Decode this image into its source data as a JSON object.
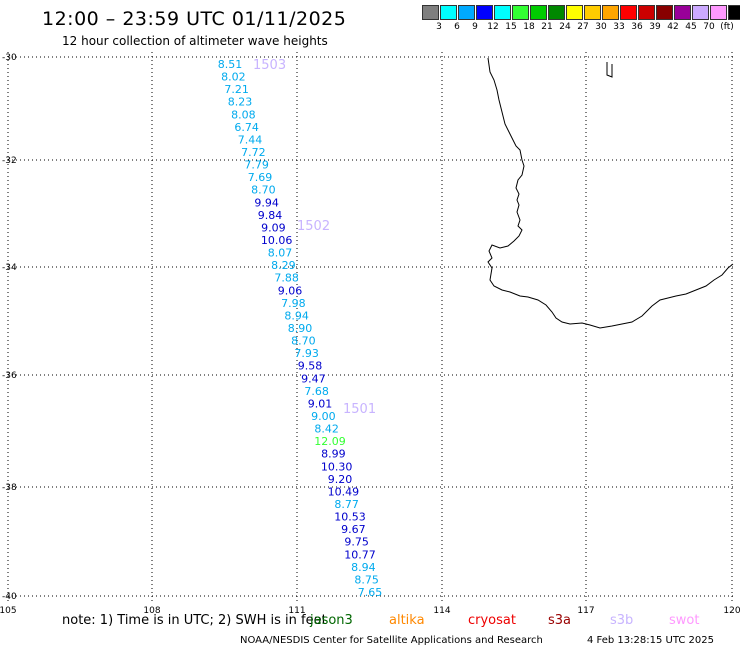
{
  "title": "12:00 – 23:59 UTC 01/11/2025",
  "subtitle": "12 hour collection of altimeter wave heights",
  "legend": {
    "colors": [
      "#7f7f7f",
      "#00ffff",
      "#00aaff",
      "#0000ff",
      "#00ffff",
      "#33ff33",
      "#00cc00",
      "#008800",
      "#ffff00",
      "#ffcc00",
      "#ffa500",
      "#ff0000",
      "#cc0000",
      "#880000",
      "#990099",
      "#ccaaff",
      "#ff99ff",
      "#000000"
    ],
    "ticks": [
      "3",
      "6",
      "9",
      "12",
      "15",
      "18",
      "21",
      "24",
      "27",
      "30",
      "33",
      "36",
      "39",
      "42",
      "45",
      "70",
      "(ft)"
    ]
  },
  "lat_labels": [
    "-30",
    "-32",
    "-34",
    "-36",
    "-38",
    "-40"
  ],
  "lon_labels": [
    "105",
    "108",
    "111",
    "114",
    "117",
    "120"
  ],
  "passes": [
    {
      "label": "1503",
      "color": "#c8b4ff"
    },
    {
      "label": "1502",
      "color": "#c8b4ff"
    },
    {
      "label": "1501",
      "color": "#c8b4ff"
    }
  ],
  "points": [
    {
      "v": "8.51",
      "c": "#00aaee"
    },
    {
      "v": "8.02",
      "c": "#00aaee"
    },
    {
      "v": "7.21",
      "c": "#00aaee"
    },
    {
      "v": "8.23",
      "c": "#00aaee"
    },
    {
      "v": "8.08",
      "c": "#00aaee"
    },
    {
      "v": "6.74",
      "c": "#00aaee"
    },
    {
      "v": "7.44",
      "c": "#00aaee"
    },
    {
      "v": "7.72",
      "c": "#00aaee"
    },
    {
      "v": "7.79",
      "c": "#00aaee"
    },
    {
      "v": "7.69",
      "c": "#00aaee"
    },
    {
      "v": "8.70",
      "c": "#00aaee"
    },
    {
      "v": "9.94",
      "c": "#0000cc"
    },
    {
      "v": "9.84",
      "c": "#0000cc"
    },
    {
      "v": "9.09",
      "c": "#0000cc"
    },
    {
      "v": "10.06",
      "c": "#0000cc"
    },
    {
      "v": "8.07",
      "c": "#00aaee"
    },
    {
      "v": "8.29",
      "c": "#00aaee"
    },
    {
      "v": "7.88",
      "c": "#00aaee"
    },
    {
      "v": "9.06",
      "c": "#0000cc"
    },
    {
      "v": "7.98",
      "c": "#00aaee"
    },
    {
      "v": "8.94",
      "c": "#00aaee"
    },
    {
      "v": "8.90",
      "c": "#00aaee"
    },
    {
      "v": "8.70",
      "c": "#00aaee"
    },
    {
      "v": "7.93",
      "c": "#00aaee"
    },
    {
      "v": "9.58",
      "c": "#0000cc"
    },
    {
      "v": "9.47",
      "c": "#0000cc"
    },
    {
      "v": "7.68",
      "c": "#00aaee"
    },
    {
      "v": "9.01",
      "c": "#0000cc"
    },
    {
      "v": "9.00",
      "c": "#00aaee"
    },
    {
      "v": "8.42",
      "c": "#00aaee"
    },
    {
      "v": "12.09",
      "c": "#33ff33"
    },
    {
      "v": "8.99",
      "c": "#0000cc"
    },
    {
      "v": "10.30",
      "c": "#0000cc"
    },
    {
      "v": "9.20",
      "c": "#0000cc"
    },
    {
      "v": "10.49",
      "c": "#0000cc"
    },
    {
      "v": "8.77",
      "c": "#00aaee"
    },
    {
      "v": "10.53",
      "c": "#0000cc"
    },
    {
      "v": "9.67",
      "c": "#0000cc"
    },
    {
      "v": "9.75",
      "c": "#0000cc"
    },
    {
      "v": "10.77",
      "c": "#0000cc"
    },
    {
      "v": "8.94",
      "c": "#00aaee"
    },
    {
      "v": "8.75",
      "c": "#00aaee"
    },
    {
      "v": "7.65",
      "c": "#00aaee"
    }
  ],
  "footer": {
    "note": "note:  1) Time is in UTC;  2) SWH is in feet",
    "satellites": [
      {
        "name": "jason3",
        "color": "#006600"
      },
      {
        "name": "altika",
        "color": "#ff8800"
      },
      {
        "name": "cryosat",
        "color": "#ee0000"
      },
      {
        "name": "s3a",
        "color": "#990000"
      },
      {
        "name": "s3b",
        "color": "#c8b4ff"
      },
      {
        "name": "swot",
        "color": "#ff99ff"
      }
    ],
    "credit": "NOAA/NESDIS Center for Satellite Applications and Research",
    "timestamp": "4 Feb 13:28:15 UTC 2025"
  }
}
